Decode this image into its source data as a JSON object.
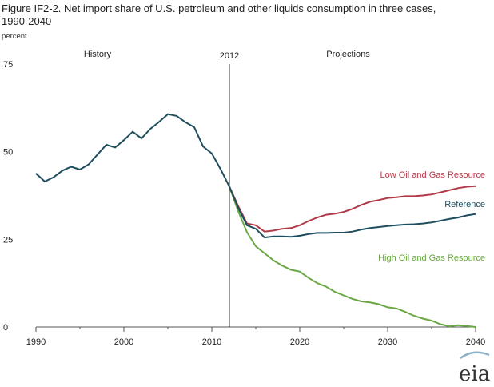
{
  "title_line1": "Figure IF2-2. Net import share of U.S. petroleum and other liquids consumption in three cases,",
  "title_line2": "1990-2040",
  "logo_text": "eia",
  "chart_data": {
    "type": "line",
    "title": "Figure IF2-2. Net import share of U.S. petroleum and other liquids consumption in three cases, 1990-2040",
    "ylabel": "percent",
    "xlabel": "",
    "xlim": [
      1990,
      2040
    ],
    "ylim": [
      0,
      75
    ],
    "x_ticks": [
      1990,
      2000,
      2010,
      2020,
      2030,
      2040
    ],
    "y_ticks": [
      0,
      25,
      50,
      75
    ],
    "grid": false,
    "divider": {
      "x": 2012,
      "label": "2012"
    },
    "period_labels": {
      "left": "History",
      "right": "Projections"
    },
    "history": {
      "x": [
        1990,
        1991,
        1992,
        1993,
        1994,
        1995,
        1996,
        1997,
        1998,
        1999,
        2000,
        2001,
        2002,
        2003,
        2004,
        2005,
        2006,
        2007,
        2008,
        2009,
        2010,
        2011,
        2012
      ],
      "values": [
        43.8,
        41.5,
        42.7,
        44.6,
        45.7,
        44.9,
        46.4,
        49.2,
        52.0,
        51.2,
        53.3,
        55.7,
        53.8,
        56.5,
        58.5,
        60.7,
        60.2,
        58.4,
        57.0,
        51.5,
        49.5,
        45.0,
        40.0
      ]
    },
    "series": [
      {
        "name": "Reference",
        "color": "#1f4e5f",
        "x": [
          2012,
          2013,
          2014,
          2015,
          2016,
          2017,
          2018,
          2019,
          2020,
          2021,
          2022,
          2023,
          2024,
          2025,
          2026,
          2027,
          2028,
          2029,
          2030,
          2031,
          2032,
          2033,
          2034,
          2035,
          2036,
          2037,
          2038,
          2039,
          2040
        ],
        "values": [
          40.0,
          34.0,
          29.0,
          28.0,
          25.5,
          25.8,
          25.8,
          25.7,
          26.0,
          26.5,
          26.8,
          26.8,
          26.9,
          26.9,
          27.2,
          27.8,
          28.2,
          28.5,
          28.8,
          29.0,
          29.2,
          29.3,
          29.5,
          29.8,
          30.3,
          30.8,
          31.2,
          31.8,
          32.2
        ]
      },
      {
        "name": "Low Oil and Gas Resource",
        "color": "#b03a48",
        "x": [
          2012,
          2013,
          2014,
          2015,
          2016,
          2017,
          2018,
          2019,
          2020,
          2021,
          2022,
          2023,
          2024,
          2025,
          2026,
          2027,
          2028,
          2029,
          2030,
          2031,
          2032,
          2033,
          2034,
          2035,
          2036,
          2037,
          2038,
          2039,
          2040
        ],
        "values": [
          40.0,
          34.5,
          29.5,
          29.0,
          27.2,
          27.5,
          28.0,
          28.2,
          29.0,
          30.2,
          31.2,
          32.0,
          32.3,
          32.8,
          33.7,
          34.8,
          35.7,
          36.2,
          36.8,
          37.0,
          37.3,
          37.3,
          37.5,
          37.8,
          38.4,
          39.0,
          39.6,
          40.0,
          40.2
        ]
      },
      {
        "name": "High Oil and Gas Resource",
        "color": "#6aa843",
        "x": [
          2012,
          2013,
          2014,
          2015,
          2016,
          2017,
          2018,
          2019,
          2020,
          2021,
          2022,
          2023,
          2024,
          2025,
          2026,
          2027,
          2028,
          2029,
          2030,
          2031,
          2032,
          2033,
          2034,
          2035,
          2036,
          2037,
          2038,
          2039,
          2040
        ],
        "values": [
          40.0,
          33.0,
          27.0,
          23.0,
          21.0,
          19.0,
          17.5,
          16.3,
          15.8,
          14.0,
          12.5,
          11.5,
          10.0,
          9.0,
          8.0,
          7.3,
          7.0,
          6.5,
          5.6,
          5.3,
          4.3,
          3.2,
          2.4,
          1.8,
          0.8,
          0.2,
          0.5,
          0.3,
          0.0
        ]
      }
    ],
    "history_color": "#1f4e5f",
    "label_colors": {
      "Reference": "#1f4e5f",
      "Low Oil and Gas Resource": "#b03a48",
      "High Oil and Gas Resource": "#6aa843"
    }
  }
}
